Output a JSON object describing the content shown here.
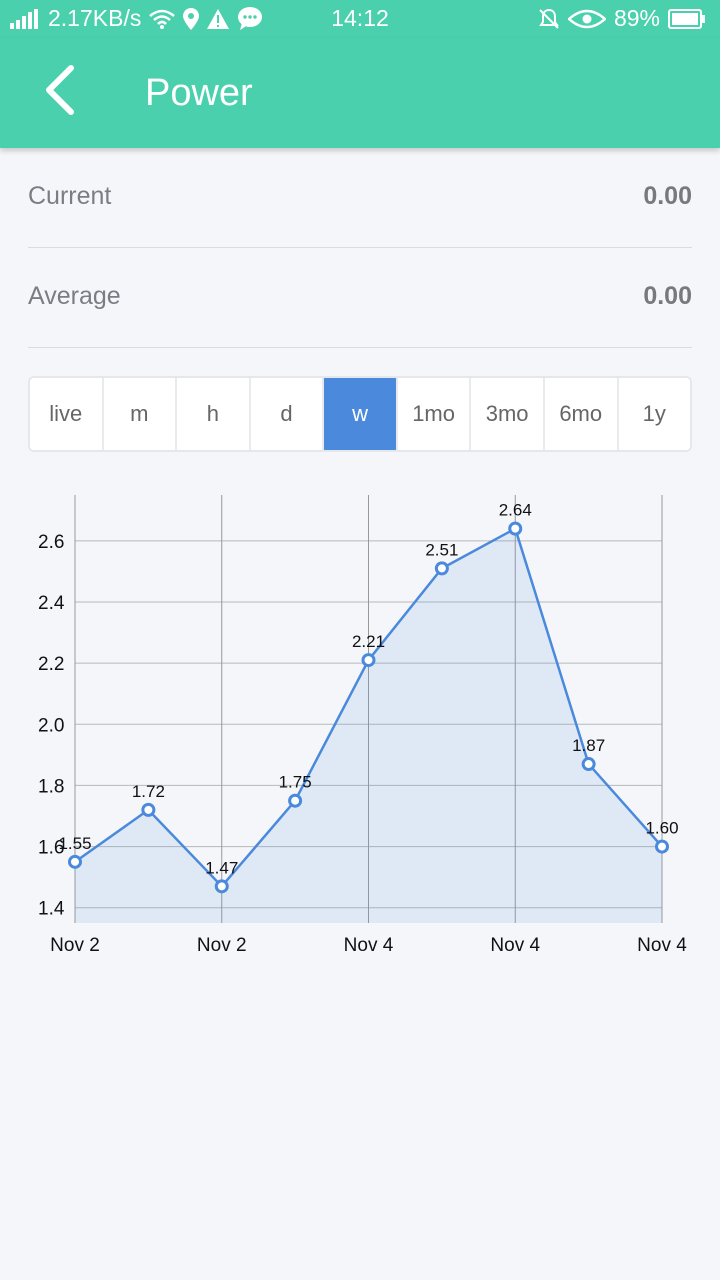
{
  "status_bar": {
    "network": "2.17KB/s",
    "time": "14:12",
    "battery": "89%",
    "icons": [
      "signal-icon",
      "wifi-icon",
      "location-icon",
      "warning-icon",
      "chat-icon",
      "mute-icon",
      "eye-icon",
      "battery-icon"
    ]
  },
  "header": {
    "title": "Power",
    "back_icon": "chevron-left-icon"
  },
  "stats": {
    "current_label": "Current",
    "current_value": "0.00",
    "average_label": "Average",
    "average_value": "0.00"
  },
  "ranges": {
    "items": [
      "live",
      "m",
      "h",
      "d",
      "w",
      "1mo",
      "3mo",
      "6mo",
      "1y"
    ],
    "selected": "w"
  },
  "colors": {
    "accent": "#4bd0ad",
    "selected": "#4a89dc",
    "line": "#4a89dc"
  },
  "chart_data": {
    "type": "area",
    "x": [
      0,
      1,
      2,
      3,
      4,
      5,
      6,
      7,
      8
    ],
    "values": [
      1.55,
      1.72,
      1.47,
      1.75,
      2.21,
      2.51,
      2.64,
      1.87,
      1.6
    ],
    "value_labels": [
      "1.55",
      "1.72",
      "1.47",
      "1.75",
      "2.21",
      "2.51",
      "2.64",
      "1.87",
      "1.60"
    ],
    "x_ticks": [
      0,
      2,
      4,
      6,
      8
    ],
    "x_tick_labels": [
      "Nov 2",
      "Nov 2",
      "Nov 4",
      "Nov 4",
      "Nov 4"
    ],
    "y_ticks": [
      1.4,
      1.6,
      1.8,
      2.0,
      2.2,
      2.4,
      2.6
    ],
    "y_tick_labels": [
      "1.4",
      "1.6",
      "1.8",
      "2.0",
      "2.2",
      "2.4",
      "2.6"
    ],
    "ylim": [
      1.35,
      2.75
    ],
    "grid": true
  }
}
